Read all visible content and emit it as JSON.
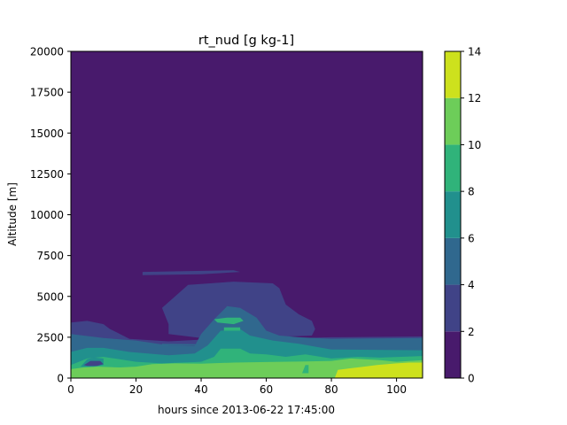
{
  "chart_data": {
    "type": "heatmap",
    "title": "rt_nud [g kg-1]",
    "xlabel": "hours since 2013-06-22 17:45:00",
    "ylabel": "Altitude [m]",
    "xlim": [
      0,
      108
    ],
    "ylim": [
      0,
      20000
    ],
    "xticks": [
      0,
      20,
      40,
      60,
      80,
      100
    ],
    "yticks": [
      0,
      2500,
      5000,
      7500,
      10000,
      12500,
      15000,
      17500,
      20000
    ],
    "colorbar": {
      "ticks": [
        0,
        2,
        4,
        6,
        8,
        10,
        12,
        14
      ],
      "levels": [
        {
          "range": [
            0,
            2
          ],
          "color": "#481a6c"
        },
        {
          "range": [
            2,
            4
          ],
          "color": "#404387"
        },
        {
          "range": [
            4,
            6
          ],
          "color": "#30688e"
        },
        {
          "range": [
            6,
            8
          ],
          "color": "#21908d"
        },
        {
          "range": [
            8,
            10
          ],
          "color": "#30b37a"
        },
        {
          "range": [
            10,
            12
          ],
          "color": "#6dcd59"
        },
        {
          "range": [
            12,
            14
          ],
          "color": "#cde11d"
        }
      ]
    },
    "regions": [
      {
        "level": 2,
        "points": [
          [
            0,
            3400
          ],
          [
            5,
            3500
          ],
          [
            10,
            3300
          ],
          [
            12,
            3000
          ],
          [
            18,
            2400
          ],
          [
            30,
            2250
          ],
          [
            40,
            2350
          ],
          [
            60,
            2400
          ],
          [
            80,
            2500
          ],
          [
            108,
            2550
          ],
          [
            108,
            0
          ],
          [
            0,
            0
          ]
        ]
      },
      {
        "level": 2,
        "points": [
          [
            22,
            6500
          ],
          [
            35,
            6550
          ],
          [
            50,
            6600
          ],
          [
            52,
            6500
          ],
          [
            40,
            6350
          ],
          [
            22,
            6300
          ]
        ]
      },
      {
        "level": 2,
        "points": [
          [
            28,
            4300
          ],
          [
            32,
            5000
          ],
          [
            36,
            5700
          ],
          [
            50,
            5900
          ],
          [
            62,
            5800
          ],
          [
            64,
            5500
          ],
          [
            66,
            4500
          ],
          [
            70,
            3900
          ],
          [
            74,
            3500
          ],
          [
            75,
            3000
          ],
          [
            74,
            2600
          ],
          [
            60,
            2500
          ],
          [
            40,
            2450
          ],
          [
            30,
            2700
          ],
          [
            30,
            3300
          ]
        ]
      },
      {
        "level": 4,
        "points": [
          [
            0,
            2700
          ],
          [
            10,
            2450
          ],
          [
            20,
            2300
          ],
          [
            30,
            2000
          ],
          [
            38,
            1950
          ],
          [
            40,
            2700
          ],
          [
            44,
            3600
          ],
          [
            48,
            4400
          ],
          [
            52,
            4300
          ],
          [
            57,
            3700
          ],
          [
            60,
            2900
          ],
          [
            64,
            2600
          ],
          [
            70,
            2500
          ],
          [
            80,
            2400
          ],
          [
            108,
            2450
          ],
          [
            108,
            0
          ],
          [
            0,
            0
          ]
        ]
      },
      {
        "level": 4,
        "points": [
          [
            28,
            2100
          ],
          [
            50,
            2050
          ],
          [
            50,
            1950
          ],
          [
            28,
            2000
          ]
        ]
      },
      {
        "level": 6,
        "points": [
          [
            0,
            1600
          ],
          [
            5,
            1850
          ],
          [
            10,
            1850
          ],
          [
            18,
            1600
          ],
          [
            30,
            1400
          ],
          [
            38,
            1500
          ],
          [
            42,
            2000
          ],
          [
            46,
            2900
          ],
          [
            52,
            3000
          ],
          [
            55,
            2600
          ],
          [
            62,
            2300
          ],
          [
            70,
            2100
          ],
          [
            80,
            1750
          ],
          [
            108,
            1700
          ],
          [
            108,
            0
          ],
          [
            0,
            0
          ]
        ]
      },
      {
        "level": 8,
        "points": [
          [
            0,
            800
          ],
          [
            5,
            1200
          ],
          [
            10,
            1300
          ],
          [
            15,
            1150
          ],
          [
            20,
            1000
          ],
          [
            28,
            900
          ],
          [
            34,
            950
          ],
          [
            40,
            1000
          ],
          [
            44,
            1300
          ],
          [
            46,
            1800
          ],
          [
            52,
            1800
          ],
          [
            55,
            1500
          ],
          [
            60,
            1450
          ],
          [
            66,
            1300
          ],
          [
            72,
            1450
          ],
          [
            80,
            1200
          ],
          [
            88,
            1300
          ],
          [
            95,
            1250
          ],
          [
            108,
            1350
          ],
          [
            108,
            0
          ],
          [
            0,
            0
          ]
        ]
      },
      {
        "level": 8,
        "points": [
          [
            44,
            3600
          ],
          [
            48,
            3700
          ],
          [
            52,
            3700
          ],
          [
            53,
            3500
          ],
          [
            50,
            3300
          ],
          [
            45,
            3400
          ]
        ]
      },
      {
        "level": 8,
        "points": [
          [
            47,
            3100
          ],
          [
            52,
            3100
          ],
          [
            52,
            2900
          ],
          [
            47,
            2900
          ]
        ]
      },
      {
        "level": 10,
        "points": [
          [
            0,
            550
          ],
          [
            4,
            650
          ],
          [
            8,
            700
          ],
          [
            15,
            650
          ],
          [
            20,
            700
          ],
          [
            25,
            850
          ],
          [
            32,
            900
          ],
          [
            40,
            880
          ],
          [
            50,
            950
          ],
          [
            60,
            980
          ],
          [
            72,
            1020
          ],
          [
            80,
            1050
          ],
          [
            86,
            1200
          ],
          [
            95,
            1100
          ],
          [
            100,
            1000
          ],
          [
            108,
            1100
          ],
          [
            108,
            0
          ],
          [
            0,
            0
          ]
        ]
      },
      {
        "level": 12,
        "points": [
          [
            81,
            0
          ],
          [
            82,
            500
          ],
          [
            86,
            600
          ],
          [
            90,
            700
          ],
          [
            94,
            800
          ],
          [
            100,
            900
          ],
          [
            104,
            950
          ],
          [
            108,
            950
          ],
          [
            108,
            0
          ]
        ]
      },
      {
        "level": 6,
        "points": [
          [
            3,
            700
          ],
          [
            5,
            1150
          ],
          [
            7,
            1250
          ],
          [
            10,
            1200
          ],
          [
            10,
            800
          ],
          [
            7,
            700
          ]
        ]
      },
      {
        "level": 2,
        "points": [
          [
            4,
            800
          ],
          [
            6,
            1050
          ],
          [
            9,
            1050
          ],
          [
            10,
            850
          ],
          [
            8,
            750
          ],
          [
            5,
            750
          ]
        ]
      },
      {
        "level": 8,
        "points": [
          [
            71,
            300
          ],
          [
            72,
            800
          ],
          [
            73,
            800
          ],
          [
            73,
            300
          ]
        ]
      }
    ]
  }
}
